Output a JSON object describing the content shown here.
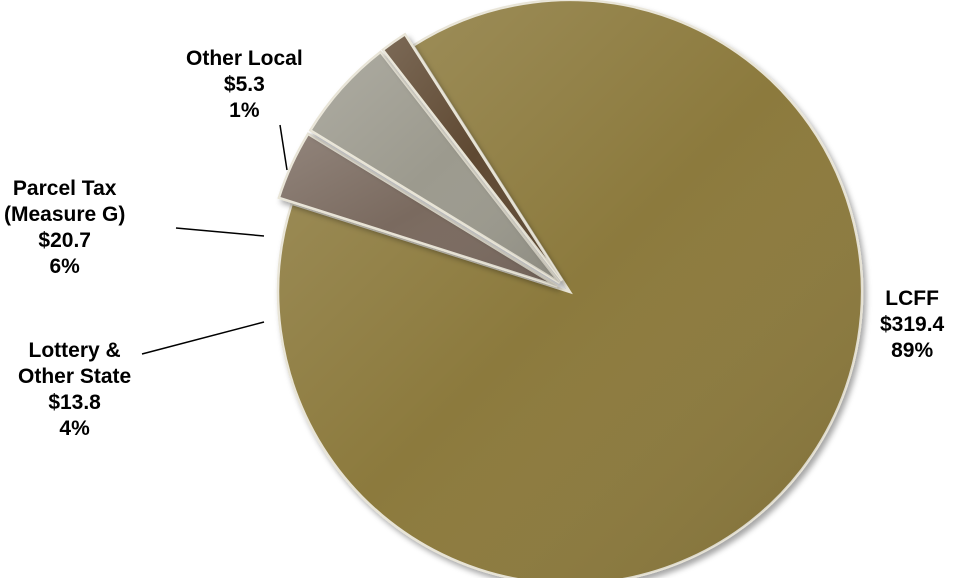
{
  "chart_data": {
    "type": "pie",
    "slices": [
      {
        "label": [
          "LCFF"
        ],
        "amount": "$319.4",
        "percent": "89%",
        "value": 319.4,
        "color": "#8c7a3e"
      },
      {
        "label": [
          "Lottery &",
          "Other State"
        ],
        "amount": "$13.8",
        "percent": "4%",
        "value": 13.8,
        "color": "#7a6a5e"
      },
      {
        "label": [
          "Parcel Tax",
          "(Measure G)"
        ],
        "amount": "$20.7",
        "percent": "6%",
        "value": 20.7,
        "color": "#9c9a8e"
      },
      {
        "label": [
          "Other Local"
        ],
        "amount": "$5.3",
        "percent": "1%",
        "value": 5.3,
        "color": "#5e4a30"
      }
    ]
  }
}
